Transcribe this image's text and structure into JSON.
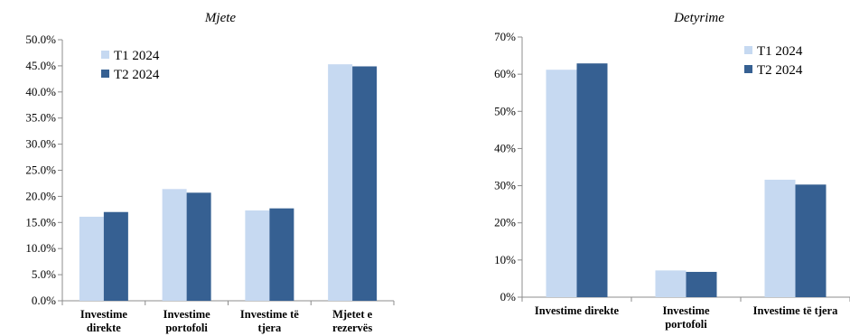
{
  "chart_data": [
    {
      "type": "bar",
      "title": "Mjete",
      "categories": [
        [
          "Investime",
          "direkte"
        ],
        [
          "Investime",
          "portofoli"
        ],
        [
          "Investime të",
          "tjera"
        ],
        [
          "Mjetet e",
          "rezervës"
        ]
      ],
      "series": [
        {
          "name": "T1 2024",
          "values": [
            16.1,
            21.4,
            17.3,
            45.3
          ]
        },
        {
          "name": "T2 2024",
          "values": [
            17.0,
            20.7,
            17.7,
            44.9
          ]
        }
      ],
      "ylim": [
        0,
        50
      ],
      "yticks": [
        0,
        5,
        10,
        15,
        20,
        25,
        30,
        35,
        40,
        45,
        50
      ],
      "ytick_labels": [
        "0.0%",
        "5.0%",
        "10.0%",
        "15.0%",
        "20.0%",
        "25.0%",
        "30.0%",
        "35.0%",
        "40.0%",
        "45.0%",
        "50.0%"
      ],
      "legend_position": "top-left",
      "grid": false
    },
    {
      "type": "bar",
      "title": "Detyrime",
      "categories": [
        [
          "Investime direkte"
        ],
        [
          "Investime",
          "portofoli"
        ],
        [
          "Investime të tjera"
        ]
      ],
      "series": [
        {
          "name": "T1 2024",
          "values": [
            61.2,
            7.2,
            31.6
          ]
        },
        {
          "name": "T2 2024",
          "values": [
            62.9,
            6.8,
            30.3
          ]
        }
      ],
      "ylim": [
        0,
        70
      ],
      "yticks": [
        0,
        10,
        20,
        30,
        40,
        50,
        60,
        70
      ],
      "ytick_labels": [
        "0%",
        "10%",
        "20%",
        "30%",
        "40%",
        "50%",
        "60%",
        "70%"
      ],
      "legend_position": "top-right",
      "grid": false
    }
  ],
  "colors": {
    "series": [
      "#c6d9f1",
      "#366092"
    ],
    "axis": "#8c8c8c",
    "text": "#000000"
  }
}
